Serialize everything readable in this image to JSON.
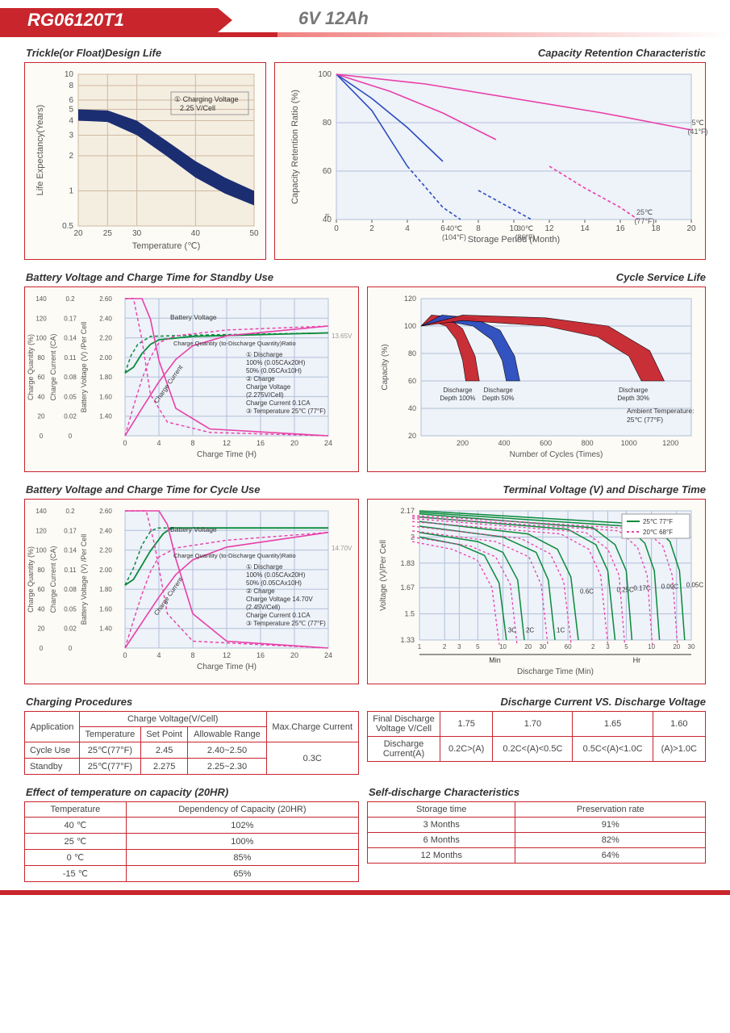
{
  "header": {
    "model": "RG06120T1",
    "spec": "6V  12Ah"
  },
  "colors": {
    "red": "#c8252d",
    "navy": "#1c2e72",
    "blue": "#2a4bbf",
    "pink": "#e83fa8",
    "green": "#0a8a3a",
    "cream": "#fdfbf6",
    "grid": "#cfb8a0",
    "gridblue": "#b0c0d8",
    "text": "#555"
  },
  "chart1": {
    "title": "Trickle(or Float)Design Life",
    "xlabel": "Temperature (℃)",
    "ylabel": "Life Expectancy(Years)",
    "xticks": [
      20,
      25,
      30,
      40,
      50
    ],
    "yticks": [
      0.5,
      1,
      2,
      3,
      4,
      5,
      6,
      8,
      10
    ],
    "legend": "① Charging Voltage\n   2.25 V/Cell",
    "band_upper": [
      [
        20,
        5.0
      ],
      [
        25,
        4.9
      ],
      [
        30,
        4.0
      ],
      [
        35,
        2.7
      ],
      [
        40,
        1.8
      ],
      [
        45,
        1.3
      ],
      [
        50,
        1.0
      ]
    ],
    "band_lower": [
      [
        20,
        4.0
      ],
      [
        25,
        3.9
      ],
      [
        30,
        3.0
      ],
      [
        35,
        2.0
      ],
      [
        40,
        1.3
      ],
      [
        45,
        0.95
      ],
      [
        50,
        0.75
      ]
    ],
    "band_color": "#1c2e72"
  },
  "chart2": {
    "title": "Capacity  Retention  Characteristic",
    "xlabel": "Storage Period (Month)",
    "ylabel": "Capacity Retention Ratio (%)",
    "xticks": [
      0,
      2,
      4,
      6,
      8,
      10,
      12,
      14,
      16,
      18,
      20
    ],
    "yticks": [
      40,
      60,
      80,
      100
    ],
    "curves": [
      {
        "label": "40℃\n(104°F)",
        "color": "#2a4bbf",
        "solid_to": 4,
        "pts": [
          [
            0,
            100
          ],
          [
            2,
            85
          ],
          [
            4,
            62
          ],
          [
            6,
            45
          ],
          [
            7,
            40
          ]
        ]
      },
      {
        "label": "30℃\n(86°F)",
        "color": "#2a4bbf",
        "solid_to": 7,
        "pts": [
          [
            0,
            100
          ],
          [
            2,
            90
          ],
          [
            4,
            78
          ],
          [
            6,
            64
          ],
          [
            8,
            52
          ],
          [
            10,
            44
          ],
          [
            11,
            40
          ]
        ]
      },
      {
        "label": "25℃\n(77°F)",
        "color": "#e83fa8",
        "solid_to": 11,
        "pts": [
          [
            0,
            100
          ],
          [
            3,
            93
          ],
          [
            6,
            84
          ],
          [
            9,
            73
          ],
          [
            12,
            62
          ],
          [
            14,
            53
          ],
          [
            16,
            45
          ],
          [
            17,
            40
          ]
        ]
      },
      {
        "label": "5℃\n(41°F)",
        "color": "#e83fa8",
        "solid_to": 20,
        "pts": [
          [
            0,
            100
          ],
          [
            5,
            96
          ],
          [
            10,
            90
          ],
          [
            15,
            84
          ],
          [
            20,
            77
          ]
        ]
      }
    ]
  },
  "chart3": {
    "title": "Battery Voltage and Charge Time for Standby Use",
    "xlabel": "Charge Time (H)",
    "y1": "Charge Quantity (%)",
    "y2": "Charge Current (CA)",
    "y3": "Battery Voltage (V) /Per Cell",
    "xticks": [
      0,
      4,
      8,
      12,
      16,
      20,
      24
    ],
    "y1ticks": [
      0,
      20,
      40,
      60,
      80,
      100,
      120,
      140
    ],
    "y2ticks": [
      0,
      0.02,
      0.05,
      0.08,
      0.11,
      0.14,
      0.17,
      0.2
    ],
    "y3ticks": [
      1.4,
      1.6,
      1.8,
      2.0,
      2.2,
      2.4,
      2.6
    ],
    "note": "13.65V",
    "legend": [
      "① Discharge",
      "   100% (0.05CAx20H)",
      "   50% (0.05CAx10H)",
      "② Charge",
      "   Charge Voltage",
      "   (2.275V/Cell)",
      "   Charge Current 0.1CA",
      "③ Temperature 25℃ (77°F)"
    ],
    "bv_label": "Battery Voltage",
    "cq_label": "Charge Quantity (to-Discharge Quantity)Ratio",
    "cc_label": "Charge Current",
    "bv100": [
      [
        0,
        1.95
      ],
      [
        1,
        2.0
      ],
      [
        2,
        2.12
      ],
      [
        3,
        2.2
      ],
      [
        4,
        2.24
      ],
      [
        8,
        2.27
      ],
      [
        24,
        2.3
      ]
    ],
    "bv50": [
      [
        0,
        1.95
      ],
      [
        0.7,
        2.1
      ],
      [
        1.5,
        2.2
      ],
      [
        3,
        2.27
      ],
      [
        8,
        2.28
      ],
      [
        24,
        2.3
      ]
    ],
    "cq100": [
      [
        0,
        0
      ],
      [
        2,
        28
      ],
      [
        4,
        55
      ],
      [
        6,
        78
      ],
      [
        8,
        92
      ],
      [
        12,
        102
      ],
      [
        24,
        112
      ]
    ],
    "cq50": [
      [
        0,
        0
      ],
      [
        1,
        30
      ],
      [
        2,
        58
      ],
      [
        3,
        80
      ],
      [
        4,
        95
      ],
      [
        6,
        102
      ],
      [
        12,
        108
      ],
      [
        24,
        112
      ]
    ],
    "cc100": [
      [
        0,
        0.2
      ],
      [
        2,
        0.2
      ],
      [
        3,
        0.17
      ],
      [
        4,
        0.11
      ],
      [
        6,
        0.04
      ],
      [
        10,
        0.01
      ],
      [
        24,
        0
      ]
    ],
    "cc50": [
      [
        0,
        0.2
      ],
      [
        1,
        0.2
      ],
      [
        2,
        0.14
      ],
      [
        3,
        0.06
      ],
      [
        5,
        0.02
      ],
      [
        10,
        0.005
      ],
      [
        24,
        0
      ]
    ]
  },
  "chart4": {
    "title": "Cycle Service Life",
    "xlabel": "Number of Cycles (Times)",
    "ylabel": "Capacity (%)",
    "xticks": [
      200,
      400,
      600,
      800,
      1000,
      1200
    ],
    "yticks": [
      20,
      40,
      60,
      80,
      100,
      120
    ],
    "note": "Ambient Temperature:\n25℃  (77°F)",
    "bands": [
      {
        "label": "Discharge\nDepth 100%",
        "color": "#c8252d",
        "up": [
          [
            0,
            100
          ],
          [
            50,
            108
          ],
          [
            120,
            107
          ],
          [
            200,
            98
          ],
          [
            260,
            78
          ],
          [
            280,
            60
          ]
        ],
        "lo": [
          [
            0,
            100
          ],
          [
            60,
            103
          ],
          [
            120,
            100
          ],
          [
            170,
            90
          ],
          [
            200,
            75
          ],
          [
            215,
            60
          ]
        ]
      },
      {
        "label": "Discharge\nDepth 50%",
        "color": "#2a4bbf",
        "up": [
          [
            0,
            100
          ],
          [
            100,
            108
          ],
          [
            250,
            106
          ],
          [
            380,
            97
          ],
          [
            450,
            78
          ],
          [
            475,
            60
          ]
        ],
        "lo": [
          [
            0,
            100
          ],
          [
            100,
            104
          ],
          [
            250,
            100
          ],
          [
            340,
            90
          ],
          [
            390,
            75
          ],
          [
            410,
            60
          ]
        ]
      },
      {
        "label": "Discharge\nDepth 30%",
        "color": "#c8252d",
        "up": [
          [
            0,
            100
          ],
          [
            200,
            108
          ],
          [
            600,
            106
          ],
          [
            900,
            100
          ],
          [
            1100,
            82
          ],
          [
            1170,
            60
          ]
        ],
        "lo": [
          [
            0,
            100
          ],
          [
            200,
            104
          ],
          [
            600,
            100
          ],
          [
            850,
            92
          ],
          [
            1000,
            78
          ],
          [
            1060,
            60
          ]
        ]
      }
    ]
  },
  "chart5": {
    "title": "Battery Voltage and Charge Time for Cycle Use",
    "xlabel": "Charge Time (H)",
    "note": "14.70V",
    "legend": [
      "① Discharge",
      "   100% (0.05CAx20H)",
      "   50% (0.05CAx10H)",
      "② Charge",
      "   Charge Voltage 14.70V",
      "   (2.45V/Cell)",
      "   Charge Current 0.1CA",
      "③ Temperature 25℃ (77°F)"
    ],
    "bv100": [
      [
        0,
        1.95
      ],
      [
        1,
        2.0
      ],
      [
        3,
        2.25
      ],
      [
        4.5,
        2.4
      ],
      [
        5.5,
        2.45
      ],
      [
        24,
        2.45
      ]
    ],
    "bv50": [
      [
        0,
        1.95
      ],
      [
        1,
        2.1
      ],
      [
        2,
        2.3
      ],
      [
        3,
        2.42
      ],
      [
        3.8,
        2.45
      ],
      [
        24,
        2.45
      ]
    ],
    "cq100": [
      [
        0,
        0
      ],
      [
        2,
        26
      ],
      [
        4,
        52
      ],
      [
        6,
        75
      ],
      [
        8,
        90
      ],
      [
        12,
        103
      ],
      [
        24,
        118
      ]
    ],
    "cq50": [
      [
        0,
        0
      ],
      [
        1,
        28
      ],
      [
        2,
        55
      ],
      [
        3,
        78
      ],
      [
        4,
        93
      ],
      [
        6,
        102
      ],
      [
        12,
        110
      ],
      [
        24,
        118
      ]
    ],
    "cc100": [
      [
        0,
        0.2
      ],
      [
        4,
        0.2
      ],
      [
        5,
        0.18
      ],
      [
        6,
        0.13
      ],
      [
        8,
        0.05
      ],
      [
        12,
        0.01
      ],
      [
        24,
        0
      ]
    ],
    "cc50": [
      [
        0,
        0.2
      ],
      [
        2.5,
        0.2
      ],
      [
        3.5,
        0.15
      ],
      [
        5,
        0.05
      ],
      [
        8,
        0.01
      ],
      [
        24,
        0
      ]
    ]
  },
  "chart6": {
    "title": "Terminal Voltage (V) and Discharge Time",
    "xlabel": "Discharge Time (Min)",
    "ylabel": "Voltage (V)/Per Cell",
    "yticks": [
      1.33,
      1.5,
      1.67,
      1.83,
      2.0,
      2.17
    ],
    "xticks_min": [
      1,
      2,
      3,
      5,
      10,
      20,
      30,
      60
    ],
    "xticks_hr": [
      2,
      3,
      5,
      10,
      20,
      30
    ],
    "legend": [
      {
        "label": "25℃ 77°F",
        "color": "#0a8a3a",
        "dash": false
      },
      {
        "label": "20℃ 68°F",
        "color": "#e83fa8",
        "dash": true
      }
    ],
    "rates": [
      "3C",
      "2C",
      "1C",
      "0.6C",
      "0.25C",
      "0.17C",
      "0.09C",
      "0.05C"
    ],
    "curves25": [
      [
        [
          1,
          2.0
        ],
        [
          3,
          1.95
        ],
        [
          6,
          1.88
        ],
        [
          9,
          1.7
        ],
        [
          11,
          1.33
        ]
      ],
      [
        [
          1,
          2.03
        ],
        [
          5,
          1.97
        ],
        [
          10,
          1.9
        ],
        [
          15,
          1.72
        ],
        [
          18,
          1.33
        ]
      ],
      [
        [
          1,
          2.07
        ],
        [
          10,
          2.0
        ],
        [
          25,
          1.9
        ],
        [
          35,
          1.72
        ],
        [
          42,
          1.33
        ]
      ],
      [
        [
          1,
          2.1
        ],
        [
          20,
          2.02
        ],
        [
          45,
          1.92
        ],
        [
          65,
          1.74
        ],
        [
          80,
          1.33
        ]
      ],
      [
        [
          1,
          2.13
        ],
        [
          60,
          2.05
        ],
        [
          130,
          1.95
        ],
        [
          180,
          1.78
        ],
        [
          220,
          1.33
        ]
      ],
      [
        [
          1,
          2.15
        ],
        [
          120,
          2.06
        ],
        [
          220,
          1.95
        ],
        [
          300,
          1.78
        ],
        [
          350,
          1.33
        ]
      ],
      [
        [
          1,
          2.16
        ],
        [
          300,
          2.07
        ],
        [
          500,
          1.96
        ],
        [
          650,
          1.78
        ],
        [
          750,
          1.33
        ]
      ],
      [
        [
          1,
          2.17
        ],
        [
          600,
          2.08
        ],
        [
          1000,
          1.97
        ],
        [
          1300,
          1.78
        ],
        [
          1500,
          1.33
        ]
      ]
    ]
  },
  "tbl_charge": {
    "title": "Charging Procedures",
    "cols": [
      "Application",
      "Temperature",
      "Set Point",
      "Allowable Range",
      "Max.Charge Current"
    ],
    "rows": [
      [
        "Cycle Use",
        "25℃(77°F)",
        "2.45",
        "2.40~2.50",
        "0.3C"
      ],
      [
        "Standby",
        "25℃(77°F)",
        "2.275",
        "2.25~2.30",
        "0.3C"
      ]
    ],
    "hgroup": "Charge Voltage(V/Cell)"
  },
  "tbl_dcdv": {
    "title": "Discharge Current VS. Discharge Voltage",
    "row1": [
      "Final Discharge Voltage V/Cell",
      "1.75",
      "1.70",
      "1.65",
      "1.60"
    ],
    "row2": [
      "Discharge Current(A)",
      "0.2C>(A)",
      "0.2C<(A)<0.5C",
      "0.5C<(A)<1.0C",
      "(A)>1.0C"
    ]
  },
  "tbl_temp": {
    "title": "Effect of temperature on capacity (20HR)",
    "cols": [
      "Temperature",
      "Dependency of Capacity (20HR)"
    ],
    "rows": [
      [
        "40 ℃",
        "102%"
      ],
      [
        "25 ℃",
        "100%"
      ],
      [
        "0 ℃",
        "85%"
      ],
      [
        "-15 ℃",
        "65%"
      ]
    ]
  },
  "tbl_self": {
    "title": "Self-discharge Characteristics",
    "cols": [
      "Storage time",
      "Preservation rate"
    ],
    "rows": [
      [
        "3 Months",
        "91%"
      ],
      [
        "6 Months",
        "82%"
      ],
      [
        "12 Months",
        "64%"
      ]
    ]
  }
}
